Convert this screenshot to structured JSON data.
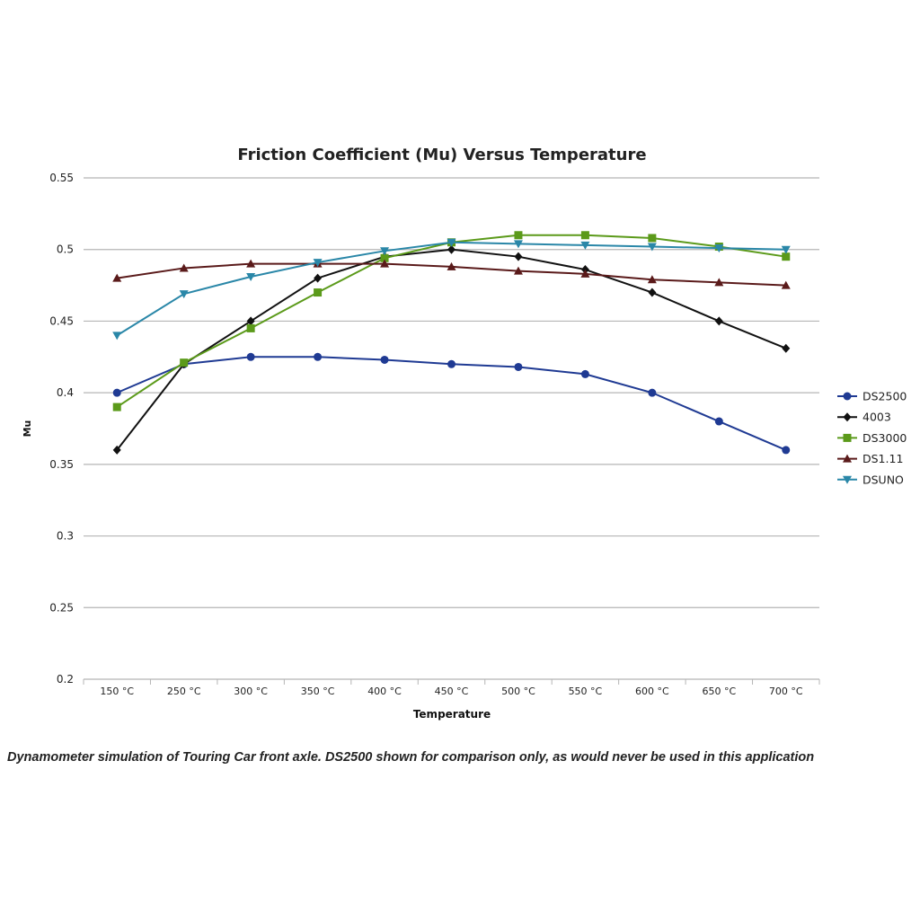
{
  "chart_data": {
    "type": "line",
    "title": "Friction Coefficient (Mu) Versus Temperature",
    "xlabel": "Temperature",
    "ylabel": "Mu",
    "ylim": [
      0.2,
      0.55
    ],
    "yticks": [
      "0.2",
      "0.25",
      "0.3",
      "0.35",
      "0.4",
      "0.45",
      "0.5",
      "0.55"
    ],
    "ytick_values": [
      0.2,
      0.25,
      0.3,
      0.35,
      0.4,
      0.45,
      0.5,
      0.55
    ],
    "grid": true,
    "legend_position": "right",
    "categories": [
      "150 °C",
      "250 °C",
      "300 °C",
      "350 °C",
      "400 °C",
      "450 °C",
      "500 °C",
      "550 °C",
      "600 °C",
      "650 °C",
      "700 °C"
    ],
    "series": [
      {
        "name": "DS2500",
        "color": "#1f3a93",
        "marker": "circle",
        "values": [
          0.4,
          0.42,
          0.425,
          0.425,
          0.423,
          0.42,
          0.418,
          0.413,
          0.4,
          0.38,
          0.36
        ]
      },
      {
        "name": "4003",
        "color": "#111111",
        "marker": "diamond",
        "values": [
          0.36,
          0.42,
          0.45,
          0.48,
          0.495,
          0.5,
          0.495,
          0.486,
          0.47,
          0.45,
          0.431
        ]
      },
      {
        "name": "DS3000",
        "color": "#5b9a1a",
        "marker": "square",
        "values": [
          0.39,
          0.421,
          0.445,
          0.47,
          0.494,
          0.505,
          0.51,
          0.51,
          0.508,
          0.502,
          0.495
        ]
      },
      {
        "name": "DS1.11",
        "color": "#5a1a1a",
        "marker": "triangle-up",
        "values": [
          0.48,
          0.487,
          0.49,
          0.49,
          0.49,
          0.488,
          0.485,
          0.483,
          0.479,
          0.477,
          0.475
        ]
      },
      {
        "name": "DSUNO",
        "color": "#2a87a8",
        "marker": "triangle-down",
        "values": [
          0.44,
          0.469,
          0.481,
          0.491,
          0.499,
          0.505,
          0.504,
          0.503,
          0.502,
          0.501,
          0.5
        ]
      }
    ]
  },
  "caption": "Dynamometer simulation of Touring Car front axle. DS2500 shown for comparison only, as would never be used in this application"
}
